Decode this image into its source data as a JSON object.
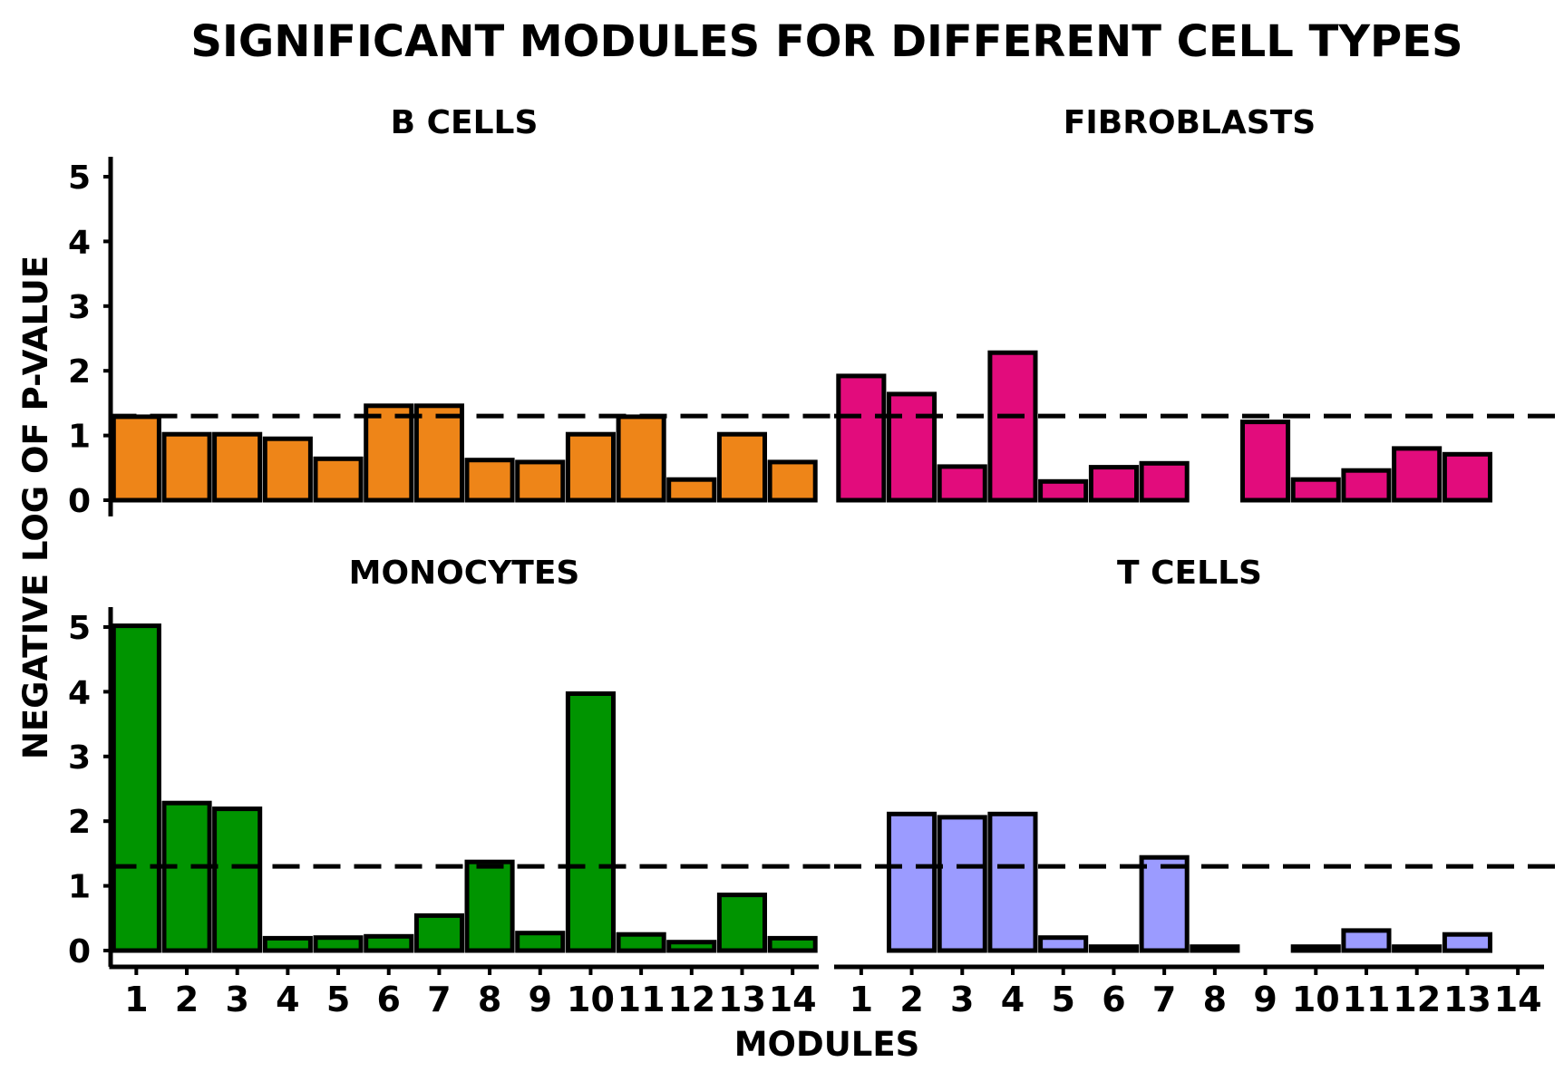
{
  "chart_data": {
    "type": "bar",
    "title": "SIGNIFICANT MODULES FOR DIFFERENT CELL TYPES",
    "xlabel": "MODULES",
    "ylabel": "NEGATIVE LOG OF P-VALUE",
    "categories": [
      "1",
      "2",
      "3",
      "4",
      "5",
      "6",
      "7",
      "8",
      "9",
      "10",
      "11",
      "12",
      "13",
      "14"
    ],
    "yticks": [
      0,
      1,
      2,
      3,
      4,
      5
    ],
    "ylim": [
      -0.25,
      5.3
    ],
    "threshold": 1.3,
    "grid": false,
    "panels": [
      {
        "name": "B CELLS",
        "color": "#ee8518",
        "values": [
          1.29,
          1.02,
          1.02,
          0.95,
          0.64,
          1.46,
          1.46,
          0.62,
          0.59,
          1.02,
          1.29,
          0.32,
          1.02,
          0.59
        ]
      },
      {
        "name": "FIBROBLASTS",
        "color": "#e20c7c",
        "values": [
          1.92,
          1.64,
          0.52,
          2.28,
          0.29,
          0.51,
          0.57,
          0.0,
          1.21,
          0.32,
          0.46,
          0.8,
          0.71,
          0.0
        ]
      },
      {
        "name": "MONOCYTES",
        "color": "#009400",
        "values": [
          5.02,
          2.28,
          2.19,
          0.19,
          0.2,
          0.22,
          0.54,
          1.37,
          0.27,
          3.97,
          0.25,
          0.13,
          0.86,
          0.19
        ]
      },
      {
        "name": "T CELLS",
        "color": "#9b9bff",
        "values": [
          0.0,
          2.11,
          2.06,
          2.11,
          0.2,
          0.06,
          1.44,
          0.06,
          0.0,
          0.06,
          0.31,
          0.06,
          0.25,
          0.0
        ]
      }
    ]
  }
}
